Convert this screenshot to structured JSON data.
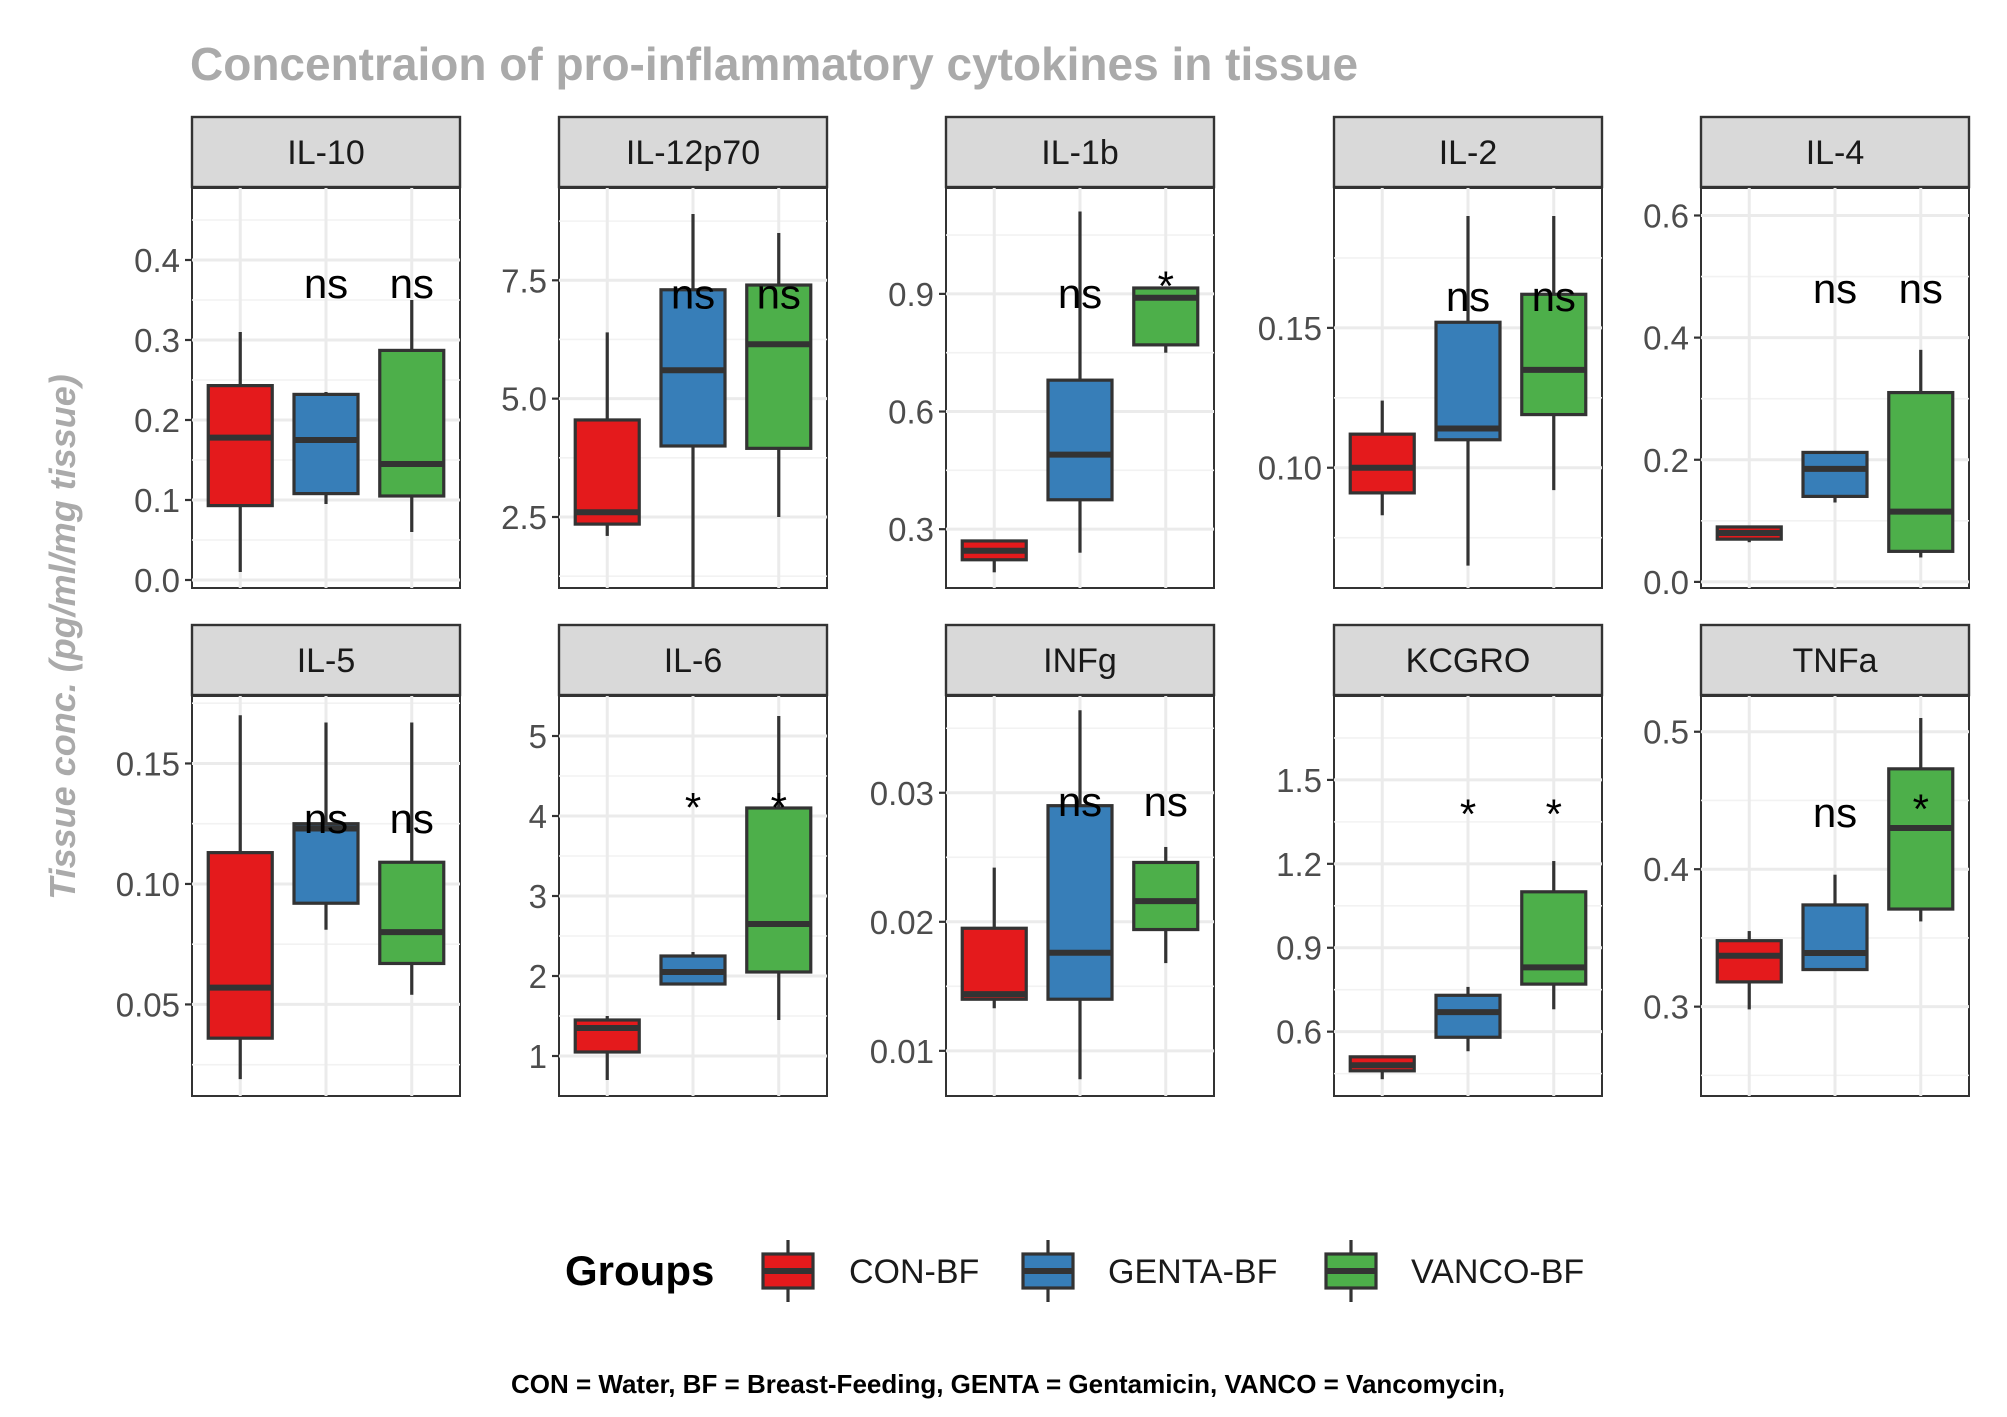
{
  "chart_data": {
    "type": "box",
    "title": "Concentraion of pro-inflammatory cytokines in tissue",
    "ylabel": "Tissue conc. (pg/ml/mg tissue)",
    "caption": "CON = Water, BF = Breast-Feeding, GENTA = Gentamicin, VANCO = Vancomycin,",
    "legend": {
      "title": "Groups",
      "position": "bottom",
      "items": [
        {
          "label": "CON-BF",
          "color": "#E41A1C"
        },
        {
          "label": "GENTA-BF",
          "color": "#377EB8"
        },
        {
          "label": "VANCO-BF",
          "color": "#4DAF4A"
        }
      ]
    },
    "groups": [
      "CON-BF",
      "GENTA-BF",
      "VANCO-BF"
    ],
    "grid": true,
    "panels": [
      {
        "name": "IL-10",
        "ylim": [
          -0.01,
          0.49
        ],
        "ticks": [
          0.0,
          0.1,
          0.2,
          0.3,
          0.4
        ],
        "tick_labels": [
          "0.0",
          "0.1",
          "0.2",
          "0.3",
          "0.4"
        ],
        "boxes": [
          {
            "min": 0.01,
            "q1": 0.093,
            "median": 0.178,
            "q3": 0.243,
            "max": 0.31
          },
          {
            "min": 0.095,
            "q1": 0.108,
            "median": 0.175,
            "q3": 0.232,
            "max": 0.235
          },
          {
            "min": 0.06,
            "q1": 0.105,
            "median": 0.145,
            "q3": 0.287,
            "max": 0.35
          }
        ],
        "sig": [
          "",
          "ns",
          "ns"
        ],
        "sig_y": [
          null,
          0.37,
          0.37
        ]
      },
      {
        "name": "IL-12p70",
        "ylim": [
          1.0,
          9.45
        ],
        "ticks": [
          2.5,
          5.0,
          7.5
        ],
        "tick_labels": [
          "2.5",
          "5.0",
          "7.5"
        ],
        "boxes": [
          {
            "min": 2.1,
            "q1": 2.35,
            "median": 2.6,
            "q3": 4.55,
            "max": 6.4
          },
          {
            "min": 1.0,
            "q1": 4.0,
            "median": 5.6,
            "q3": 7.3,
            "max": 8.9
          },
          {
            "min": 2.5,
            "q1": 3.95,
            "median": 6.15,
            "q3": 7.4,
            "max": 8.5
          }
        ],
        "sig": [
          "",
          "ns",
          "ns"
        ],
        "sig_y": [
          null,
          7.2,
          7.2
        ]
      },
      {
        "name": "IL-1b",
        "ylim": [
          0.15,
          1.17
        ],
        "ticks": [
          0.3,
          0.6,
          0.9
        ],
        "tick_labels": [
          "0.3",
          "0.6",
          "0.9"
        ],
        "boxes": [
          {
            "min": 0.19,
            "q1": 0.222,
            "median": 0.245,
            "q3": 0.27,
            "max": 0.272
          },
          {
            "min": 0.24,
            "q1": 0.375,
            "median": 0.49,
            "q3": 0.68,
            "max": 1.11
          },
          {
            "min": 0.75,
            "q1": 0.77,
            "median": 0.89,
            "q3": 0.915,
            "max": 0.915
          }
        ],
        "sig": [
          "",
          "ns",
          "*"
        ],
        "sig_y": [
          null,
          0.9,
          0.95
        ]
      },
      {
        "name": "IL-2",
        "ylim": [
          0.057,
          0.2
        ],
        "ticks": [
          0.1,
          0.15
        ],
        "tick_labels": [
          "0.10",
          "0.15"
        ],
        "boxes": [
          {
            "min": 0.083,
            "q1": 0.091,
            "median": 0.1,
            "q3": 0.112,
            "max": 0.124
          },
          {
            "min": 0.065,
            "q1": 0.11,
            "median": 0.114,
            "q3": 0.152,
            "max": 0.19
          },
          {
            "min": 0.092,
            "q1": 0.119,
            "median": 0.135,
            "q3": 0.162,
            "max": 0.19
          }
        ],
        "sig": [
          "",
          "ns",
          "ns"
        ],
        "sig_y": [
          null,
          0.161,
          0.161
        ]
      },
      {
        "name": "IL-4",
        "ylim": [
          -0.01,
          0.645
        ],
        "ticks": [
          0.0,
          0.2,
          0.4,
          0.6
        ],
        "tick_labels": [
          "0.0",
          "0.2",
          "0.4",
          "0.6"
        ],
        "boxes": [
          {
            "min": 0.065,
            "q1": 0.07,
            "median": 0.08,
            "q3": 0.09,
            "max": 0.092
          },
          {
            "min": 0.13,
            "q1": 0.14,
            "median": 0.185,
            "q3": 0.212,
            "max": 0.212
          },
          {
            "min": 0.04,
            "q1": 0.05,
            "median": 0.115,
            "q3": 0.31,
            "max": 0.38
          }
        ],
        "sig": [
          "",
          "ns",
          "ns"
        ],
        "sig_y": [
          null,
          0.48,
          0.48
        ]
      },
      {
        "name": "IL-5",
        "ylim": [
          0.012,
          0.178
        ],
        "ticks": [
          0.05,
          0.1,
          0.15
        ],
        "tick_labels": [
          "0.05",
          "0.10",
          "0.15"
        ],
        "boxes": [
          {
            "min": 0.019,
            "q1": 0.036,
            "median": 0.057,
            "q3": 0.113,
            "max": 0.17
          },
          {
            "min": 0.081,
            "q1": 0.092,
            "median": 0.123,
            "q3": 0.125,
            "max": 0.167
          },
          {
            "min": 0.054,
            "q1": 0.067,
            "median": 0.08,
            "q3": 0.109,
            "max": 0.167
          }
        ],
        "sig": [
          "",
          "ns",
          "ns"
        ],
        "sig_y": [
          null,
          0.127,
          0.127
        ]
      },
      {
        "name": "IL-6",
        "ylim": [
          0.5,
          5.5
        ],
        "ticks": [
          1,
          2,
          3,
          4,
          5
        ],
        "tick_labels": [
          "1",
          "2",
          "3",
          "4",
          "5"
        ],
        "boxes": [
          {
            "min": 0.7,
            "q1": 1.05,
            "median": 1.35,
            "q3": 1.45,
            "max": 1.5
          },
          {
            "min": 1.9,
            "q1": 1.9,
            "median": 2.05,
            "q3": 2.25,
            "max": 2.3
          },
          {
            "min": 1.45,
            "q1": 2.05,
            "median": 2.65,
            "q3": 4.1,
            "max": 5.25
          }
        ],
        "sig": [
          "",
          "*",
          "*"
        ],
        "sig_y": [
          null,
          4.25,
          4.25
        ]
      },
      {
        "name": "INFg",
        "ylim": [
          0.0065,
          0.0375
        ],
        "ticks": [
          0.01,
          0.02,
          0.03
        ],
        "tick_labels": [
          "0.01",
          "0.02",
          "0.03"
        ],
        "boxes": [
          {
            "min": 0.0133,
            "q1": 0.014,
            "median": 0.0144,
            "q3": 0.0195,
            "max": 0.0242
          },
          {
            "min": 0.0078,
            "q1": 0.014,
            "median": 0.0176,
            "q3": 0.029,
            "max": 0.0364
          },
          {
            "min": 0.0168,
            "q1": 0.0194,
            "median": 0.0216,
            "q3": 0.0246,
            "max": 0.0258
          }
        ],
        "sig": [
          "",
          "ns",
          "ns"
        ],
        "sig_y": [
          null,
          0.0293,
          0.0293
        ]
      },
      {
        "name": "KCGRO",
        "ylim": [
          0.37,
          1.8
        ],
        "ticks": [
          0.6,
          0.9,
          1.2,
          1.5
        ],
        "tick_labels": [
          "0.6",
          "0.9",
          "1.2",
          "1.5"
        ],
        "boxes": [
          {
            "min": 0.43,
            "q1": 0.46,
            "median": 0.48,
            "q3": 0.51,
            "max": 0.515
          },
          {
            "min": 0.53,
            "q1": 0.58,
            "median": 0.67,
            "q3": 0.73,
            "max": 0.76
          },
          {
            "min": 0.68,
            "q1": 0.77,
            "median": 0.83,
            "q3": 1.1,
            "max": 1.21
          }
        ],
        "sig": [
          "",
          "*",
          "*"
        ],
        "sig_y": [
          null,
          1.42,
          1.42
        ]
      },
      {
        "name": "TNFa",
        "ylim": [
          0.235,
          0.526
        ],
        "ticks": [
          0.3,
          0.4,
          0.5
        ],
        "tick_labels": [
          "0.3",
          "0.4",
          "0.5"
        ],
        "boxes": [
          {
            "min": 0.298,
            "q1": 0.318,
            "median": 0.337,
            "q3": 0.348,
            "max": 0.355
          },
          {
            "min": 0.326,
            "q1": 0.327,
            "median": 0.339,
            "q3": 0.374,
            "max": 0.396
          },
          {
            "min": 0.362,
            "q1": 0.371,
            "median": 0.43,
            "q3": 0.473,
            "max": 0.51
          }
        ],
        "sig": [
          "",
          "ns",
          "*"
        ],
        "sig_y": [
          null,
          0.441,
          0.452
        ]
      }
    ]
  }
}
